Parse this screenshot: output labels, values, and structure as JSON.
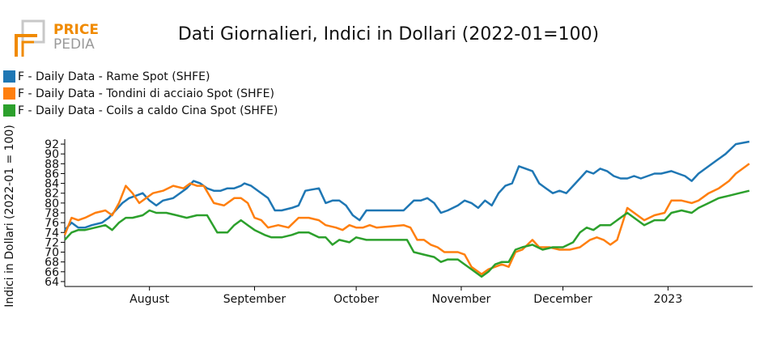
{
  "brand": {
    "line1": "PRICE",
    "line2": "PEDIA",
    "accent": "#f08a00",
    "grey": "#9a9a9a"
  },
  "chart_data": {
    "type": "line",
    "title": "Dati Giornalieri, Indici in Dollari (2022-01=100)",
    "ylabel": "Indici in Dollari (2022-01 = 100)",
    "xlabel": "",
    "ylim": [
      63,
      93
    ],
    "yticks": [
      64,
      66,
      68,
      70,
      72,
      74,
      76,
      78,
      80,
      82,
      84,
      86,
      88,
      90,
      92
    ],
    "x_start": "2022-07-07",
    "x_end": "2023-01-26",
    "x_ticks": [
      {
        "label": "August",
        "date": "2022-08-01"
      },
      {
        "label": "September",
        "date": "2022-09-01"
      },
      {
        "label": "October",
        "date": "2022-10-01"
      },
      {
        "label": "November",
        "date": "2022-11-01"
      },
      {
        "label": "December",
        "date": "2022-12-01"
      },
      {
        "label": "2023",
        "date": "2023-01-01"
      }
    ],
    "grid": false,
    "legend_position": "top-left",
    "series": [
      {
        "name": "F - Daily Data - Rame Spot (SHFE)",
        "color": "#1f77b4",
        "points": [
          [
            "2022-07-07",
            74.5
          ],
          [
            "2022-07-09",
            76.0
          ],
          [
            "2022-07-11",
            75.0
          ],
          [
            "2022-07-13",
            75.0
          ],
          [
            "2022-07-15",
            75.5
          ],
          [
            "2022-07-18",
            76.0
          ],
          [
            "2022-07-20",
            77.0
          ],
          [
            "2022-07-22",
            78.5
          ],
          [
            "2022-07-24",
            80.0
          ],
          [
            "2022-07-26",
            81.0
          ],
          [
            "2022-07-28",
            81.5
          ],
          [
            "2022-07-30",
            82.0
          ],
          [
            "2022-08-01",
            80.5
          ],
          [
            "2022-08-03",
            79.5
          ],
          [
            "2022-08-05",
            80.5
          ],
          [
            "2022-08-08",
            81.0
          ],
          [
            "2022-08-10",
            82.0
          ],
          [
            "2022-08-12",
            83.0
          ],
          [
            "2022-08-14",
            84.5
          ],
          [
            "2022-08-16",
            84.0
          ],
          [
            "2022-08-18",
            83.0
          ],
          [
            "2022-08-20",
            82.5
          ],
          [
            "2022-08-22",
            82.5
          ],
          [
            "2022-08-24",
            83.0
          ],
          [
            "2022-08-26",
            83.0
          ],
          [
            "2022-08-28",
            83.5
          ],
          [
            "2022-08-29",
            84.0
          ],
          [
            "2022-08-31",
            83.5
          ],
          [
            "2022-09-02",
            82.5
          ],
          [
            "2022-09-05",
            81.0
          ],
          [
            "2022-09-07",
            78.5
          ],
          [
            "2022-09-09",
            78.5
          ],
          [
            "2022-09-12",
            79.0
          ],
          [
            "2022-09-14",
            79.5
          ],
          [
            "2022-09-16",
            82.5
          ],
          [
            "2022-09-20",
            83.0
          ],
          [
            "2022-09-22",
            80.0
          ],
          [
            "2022-09-24",
            80.5
          ],
          [
            "2022-09-26",
            80.5
          ],
          [
            "2022-09-28",
            79.5
          ],
          [
            "2022-09-30",
            77.5
          ],
          [
            "2022-10-02",
            76.5
          ],
          [
            "2022-10-04",
            78.5
          ],
          [
            "2022-10-06",
            78.5
          ],
          [
            "2022-10-10",
            78.5
          ],
          [
            "2022-10-15",
            78.5
          ],
          [
            "2022-10-18",
            80.5
          ],
          [
            "2022-10-20",
            80.5
          ],
          [
            "2022-10-22",
            81.0
          ],
          [
            "2022-10-24",
            80.0
          ],
          [
            "2022-10-26",
            78.0
          ],
          [
            "2022-10-28",
            78.5
          ],
          [
            "2022-10-31",
            79.5
          ],
          [
            "2022-11-02",
            80.5
          ],
          [
            "2022-11-04",
            80.0
          ],
          [
            "2022-11-06",
            79.0
          ],
          [
            "2022-11-08",
            80.5
          ],
          [
            "2022-11-10",
            79.5
          ],
          [
            "2022-11-12",
            82.0
          ],
          [
            "2022-11-14",
            83.5
          ],
          [
            "2022-11-16",
            84.0
          ],
          [
            "2022-11-18",
            87.5
          ],
          [
            "2022-11-20",
            87.0
          ],
          [
            "2022-11-22",
            86.5
          ],
          [
            "2022-11-24",
            84.0
          ],
          [
            "2022-11-26",
            83.0
          ],
          [
            "2022-11-28",
            82.0
          ],
          [
            "2022-11-30",
            82.5
          ],
          [
            "2022-12-02",
            82.0
          ],
          [
            "2022-12-04",
            83.5
          ],
          [
            "2022-12-06",
            85.0
          ],
          [
            "2022-12-08",
            86.5
          ],
          [
            "2022-12-10",
            86.0
          ],
          [
            "2022-12-12",
            87.0
          ],
          [
            "2022-12-14",
            86.5
          ],
          [
            "2022-12-16",
            85.5
          ],
          [
            "2022-12-18",
            85.0
          ],
          [
            "2022-12-20",
            85.0
          ],
          [
            "2022-12-22",
            85.5
          ],
          [
            "2022-12-24",
            85.0
          ],
          [
            "2022-12-26",
            85.5
          ],
          [
            "2022-12-28",
            86.0
          ],
          [
            "2022-12-30",
            86.0
          ],
          [
            "2023-01-02",
            86.5
          ],
          [
            "2023-01-04",
            86.0
          ],
          [
            "2023-01-06",
            85.5
          ],
          [
            "2023-01-08",
            84.5
          ],
          [
            "2023-01-10",
            86.0
          ],
          [
            "2023-01-12",
            87.0
          ],
          [
            "2023-01-15",
            88.5
          ],
          [
            "2023-01-18",
            90.0
          ],
          [
            "2023-01-21",
            92.0
          ],
          [
            "2023-01-25",
            92.5
          ]
        ]
      },
      {
        "name": "F - Daily Data - Tondini di acciaio Spot (SHFE)",
        "color": "#ff7f0e",
        "points": [
          [
            "2022-07-07",
            73.5
          ],
          [
            "2022-07-09",
            77.0
          ],
          [
            "2022-07-11",
            76.5
          ],
          [
            "2022-07-13",
            77.0
          ],
          [
            "2022-07-16",
            78.0
          ],
          [
            "2022-07-19",
            78.5
          ],
          [
            "2022-07-21",
            77.5
          ],
          [
            "2022-07-23",
            80.0
          ],
          [
            "2022-07-25",
            83.5
          ],
          [
            "2022-07-27",
            82.0
          ],
          [
            "2022-07-29",
            80.0
          ],
          [
            "2022-07-31",
            81.0
          ],
          [
            "2022-08-02",
            82.0
          ],
          [
            "2022-08-05",
            82.5
          ],
          [
            "2022-08-08",
            83.5
          ],
          [
            "2022-08-11",
            83.0
          ],
          [
            "2022-08-13",
            84.0
          ],
          [
            "2022-08-15",
            83.5
          ],
          [
            "2022-08-17",
            83.5
          ],
          [
            "2022-08-20",
            80.0
          ],
          [
            "2022-08-23",
            79.5
          ],
          [
            "2022-08-26",
            81.0
          ],
          [
            "2022-08-28",
            81.0
          ],
          [
            "2022-08-30",
            80.0
          ],
          [
            "2022-09-01",
            77.0
          ],
          [
            "2022-09-03",
            76.5
          ],
          [
            "2022-09-05",
            75.0
          ],
          [
            "2022-09-08",
            75.5
          ],
          [
            "2022-09-11",
            75.0
          ],
          [
            "2022-09-14",
            77.0
          ],
          [
            "2022-09-17",
            77.0
          ],
          [
            "2022-09-20",
            76.5
          ],
          [
            "2022-09-22",
            75.5
          ],
          [
            "2022-09-25",
            75.0
          ],
          [
            "2022-09-27",
            74.5
          ],
          [
            "2022-09-29",
            75.5
          ],
          [
            "2022-10-01",
            75.0
          ],
          [
            "2022-10-03",
            75.0
          ],
          [
            "2022-10-05",
            75.5
          ],
          [
            "2022-10-07",
            75.0
          ],
          [
            "2022-10-15",
            75.5
          ],
          [
            "2022-10-17",
            75.0
          ],
          [
            "2022-10-19",
            72.5
          ],
          [
            "2022-10-21",
            72.5
          ],
          [
            "2022-10-23",
            71.5
          ],
          [
            "2022-10-25",
            71.0
          ],
          [
            "2022-10-27",
            70.0
          ],
          [
            "2022-10-31",
            70.0
          ],
          [
            "2022-11-02",
            69.5
          ],
          [
            "2022-11-04",
            67.0
          ],
          [
            "2022-11-07",
            65.5
          ],
          [
            "2022-11-09",
            66.5
          ],
          [
            "2022-11-11",
            67.0
          ],
          [
            "2022-11-13",
            67.5
          ],
          [
            "2022-11-15",
            67.0
          ],
          [
            "2022-11-17",
            70.0
          ],
          [
            "2022-11-19",
            70.5
          ],
          [
            "2022-11-22",
            72.5
          ],
          [
            "2022-11-24",
            71.0
          ],
          [
            "2022-11-27",
            71.0
          ],
          [
            "2022-11-30",
            70.5
          ],
          [
            "2022-12-03",
            70.5
          ],
          [
            "2022-12-06",
            71.0
          ],
          [
            "2022-12-09",
            72.5
          ],
          [
            "2022-12-11",
            73.0
          ],
          [
            "2022-12-13",
            72.5
          ],
          [
            "2022-12-15",
            71.5
          ],
          [
            "2022-12-17",
            72.5
          ],
          [
            "2022-12-20",
            79.0
          ],
          [
            "2022-12-23",
            77.5
          ],
          [
            "2022-12-25",
            76.5
          ],
          [
            "2022-12-28",
            77.5
          ],
          [
            "2022-12-31",
            78.0
          ],
          [
            "2023-01-02",
            80.5
          ],
          [
            "2023-01-05",
            80.5
          ],
          [
            "2023-01-08",
            80.0
          ],
          [
            "2023-01-10",
            80.5
          ],
          [
            "2023-01-13",
            82.0
          ],
          [
            "2023-01-16",
            83.0
          ],
          [
            "2023-01-19",
            84.5
          ],
          [
            "2023-01-21",
            86.0
          ],
          [
            "2023-01-24",
            87.5
          ],
          [
            "2023-01-25",
            88.0
          ]
        ]
      },
      {
        "name": "F - Daily Data - Coils a caldo Cina Spot (SHFE)",
        "color": "#2ca02c",
        "points": [
          [
            "2022-07-07",
            72.5
          ],
          [
            "2022-07-09",
            74.0
          ],
          [
            "2022-07-11",
            74.5
          ],
          [
            "2022-07-13",
            74.5
          ],
          [
            "2022-07-16",
            75.0
          ],
          [
            "2022-07-19",
            75.5
          ],
          [
            "2022-07-21",
            74.5
          ],
          [
            "2022-07-23",
            76.0
          ],
          [
            "2022-07-25",
            77.0
          ],
          [
            "2022-07-27",
            77.0
          ],
          [
            "2022-07-30",
            77.5
          ],
          [
            "2022-08-01",
            78.5
          ],
          [
            "2022-08-03",
            78.0
          ],
          [
            "2022-08-06",
            78.0
          ],
          [
            "2022-08-09",
            77.5
          ],
          [
            "2022-08-12",
            77.0
          ],
          [
            "2022-08-15",
            77.5
          ],
          [
            "2022-08-18",
            77.5
          ],
          [
            "2022-08-21",
            74.0
          ],
          [
            "2022-08-24",
            74.0
          ],
          [
            "2022-08-26",
            75.5
          ],
          [
            "2022-08-28",
            76.5
          ],
          [
            "2022-08-30",
            75.5
          ],
          [
            "2022-09-01",
            74.5
          ],
          [
            "2022-09-04",
            73.5
          ],
          [
            "2022-09-06",
            73.0
          ],
          [
            "2022-09-09",
            73.0
          ],
          [
            "2022-09-12",
            73.5
          ],
          [
            "2022-09-14",
            74.0
          ],
          [
            "2022-09-17",
            74.0
          ],
          [
            "2022-09-20",
            73.0
          ],
          [
            "2022-09-22",
            73.0
          ],
          [
            "2022-09-24",
            71.5
          ],
          [
            "2022-09-26",
            72.5
          ],
          [
            "2022-09-29",
            72.0
          ],
          [
            "2022-10-01",
            73.0
          ],
          [
            "2022-10-04",
            72.5
          ],
          [
            "2022-10-10",
            72.5
          ],
          [
            "2022-10-16",
            72.5
          ],
          [
            "2022-10-18",
            70.0
          ],
          [
            "2022-10-21",
            69.5
          ],
          [
            "2022-10-24",
            69.0
          ],
          [
            "2022-10-26",
            68.0
          ],
          [
            "2022-10-28",
            68.5
          ],
          [
            "2022-10-31",
            68.5
          ],
          [
            "2022-11-02",
            67.5
          ],
          [
            "2022-11-04",
            66.5
          ],
          [
            "2022-11-07",
            65.0
          ],
          [
            "2022-11-09",
            66.0
          ],
          [
            "2022-11-11",
            67.5
          ],
          [
            "2022-11-13",
            68.0
          ],
          [
            "2022-11-15",
            68.0
          ],
          [
            "2022-11-17",
            70.5
          ],
          [
            "2022-11-19",
            71.0
          ],
          [
            "2022-11-22",
            71.5
          ],
          [
            "2022-11-25",
            70.5
          ],
          [
            "2022-11-28",
            71.0
          ],
          [
            "2022-12-01",
            71.0
          ],
          [
            "2022-12-04",
            72.0
          ],
          [
            "2022-12-06",
            74.0
          ],
          [
            "2022-12-08",
            75.0
          ],
          [
            "2022-12-10",
            74.5
          ],
          [
            "2022-12-12",
            75.5
          ],
          [
            "2022-12-15",
            75.5
          ],
          [
            "2022-12-17",
            76.5
          ],
          [
            "2022-12-20",
            78.0
          ],
          [
            "2022-12-23",
            76.5
          ],
          [
            "2022-12-25",
            75.5
          ],
          [
            "2022-12-28",
            76.5
          ],
          [
            "2022-12-31",
            76.5
          ],
          [
            "2023-01-02",
            78.0
          ],
          [
            "2023-01-05",
            78.5
          ],
          [
            "2023-01-08",
            78.0
          ],
          [
            "2023-01-10",
            79.0
          ],
          [
            "2023-01-13",
            80.0
          ],
          [
            "2023-01-16",
            81.0
          ],
          [
            "2023-01-19",
            81.5
          ],
          [
            "2023-01-22",
            82.0
          ],
          [
            "2023-01-25",
            82.5
          ]
        ]
      }
    ]
  }
}
